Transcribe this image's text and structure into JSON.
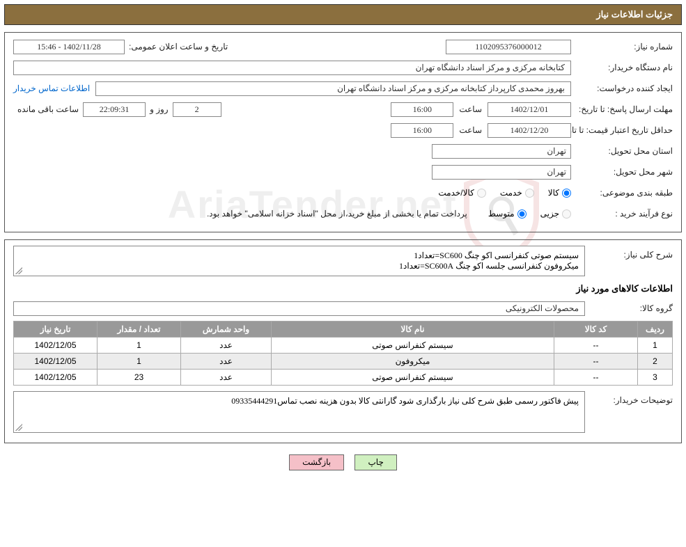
{
  "header": {
    "title": "جزئیات اطلاعات نیاز"
  },
  "info": {
    "need_no_label": "شماره نیاز:",
    "need_no": "1102095376000012",
    "announce_label": "تاریخ و ساعت اعلان عمومی:",
    "announce_value": "1402/11/28 - 15:46",
    "buyer_org_label": "نام دستگاه خریدار:",
    "buyer_org": "کتابخانه مرکزی و مرکز اسناد دانشگاه تهران",
    "requester_label": "ایجاد کننده درخواست:",
    "requester": "بهروز محمدی کارپرداز کتابخانه مرکزی و مرکز اسناد دانشگاه تهران",
    "contact_link": "اطلاعات تماس خریدار",
    "reply_deadline_label": "مهلت ارسال پاسخ: تا تاریخ:",
    "reply_date": "1402/12/01",
    "time_label": "ساعت",
    "reply_time": "16:00",
    "days_value": "2",
    "days_and": "روز و",
    "countdown": "22:09:31",
    "remaining_label": "ساعت باقی مانده",
    "validity_label": "حداقل تاریخ اعتبار قیمت: تا تاریخ:",
    "validity_date": "1402/12/20",
    "validity_time": "16:00",
    "province_label": "استان محل تحویل:",
    "province": "تهران",
    "city_label": "شهر محل تحویل:",
    "city": "تهران",
    "category_label": "طبقه بندی موضوعی:",
    "cat_goods": "کالا",
    "cat_service": "خدمت",
    "cat_goods_service": "کالا/خدمت",
    "process_label": "نوع فرآیند خرید :",
    "proc_partial": "جزیی",
    "proc_medium": "متوسط",
    "process_note": "پرداخت تمام یا بخشی از مبلغ خرید،از محل \"اسناد خزانه اسلامی\" خواهد بود."
  },
  "need": {
    "desc_label": "شرح کلی نیاز:",
    "desc_line1": "سیستم صوتی کنفرانسی اکو چنگ SC600=تعداد1",
    "desc_line2": "میکروفون کنفرانسی جلسه اکو چنگ SC600A=تعداد1",
    "items_title": "اطلاعات کالاهای مورد نیاز",
    "group_label": "گروه کالا:",
    "group": "محصولات الکترونیکی",
    "table": {
      "headers": {
        "row": "ردیف",
        "code": "کد کالا",
        "name": "نام کالا",
        "unit": "واحد شمارش",
        "qty": "تعداد / مقدار",
        "date": "تاریخ نیاز"
      },
      "rows": [
        {
          "row": "1",
          "code": "--",
          "name": "سیستم کنفرانس صوتی",
          "unit": "عدد",
          "qty": "1",
          "date": "1402/12/05"
        },
        {
          "row": "2",
          "code": "--",
          "name": "میکروفون",
          "unit": "عدد",
          "qty": "1",
          "date": "1402/12/05"
        },
        {
          "row": "3",
          "code": "--",
          "name": "سیستم کنفرانس صوتی",
          "unit": "عدد",
          "qty": "23",
          "date": "1402/12/05"
        }
      ]
    },
    "buyer_notes_label": "توضیحات خریدار:",
    "buyer_notes": "پیش فاکتور رسمی طبق شرح کلی نیاز بارگذاری شود گارانتی کالا بدون هزینه نصب تماس09335444291"
  },
  "buttons": {
    "print": "چاپ",
    "back": "بازگشت"
  },
  "colors": {
    "header_bg": "#8b6f3e",
    "header_fg": "#ffffff",
    "th_bg": "#999999",
    "btn_print_bg": "#d0f0c0",
    "btn_back_bg": "#f5c0c8",
    "link": "#0066cc"
  }
}
